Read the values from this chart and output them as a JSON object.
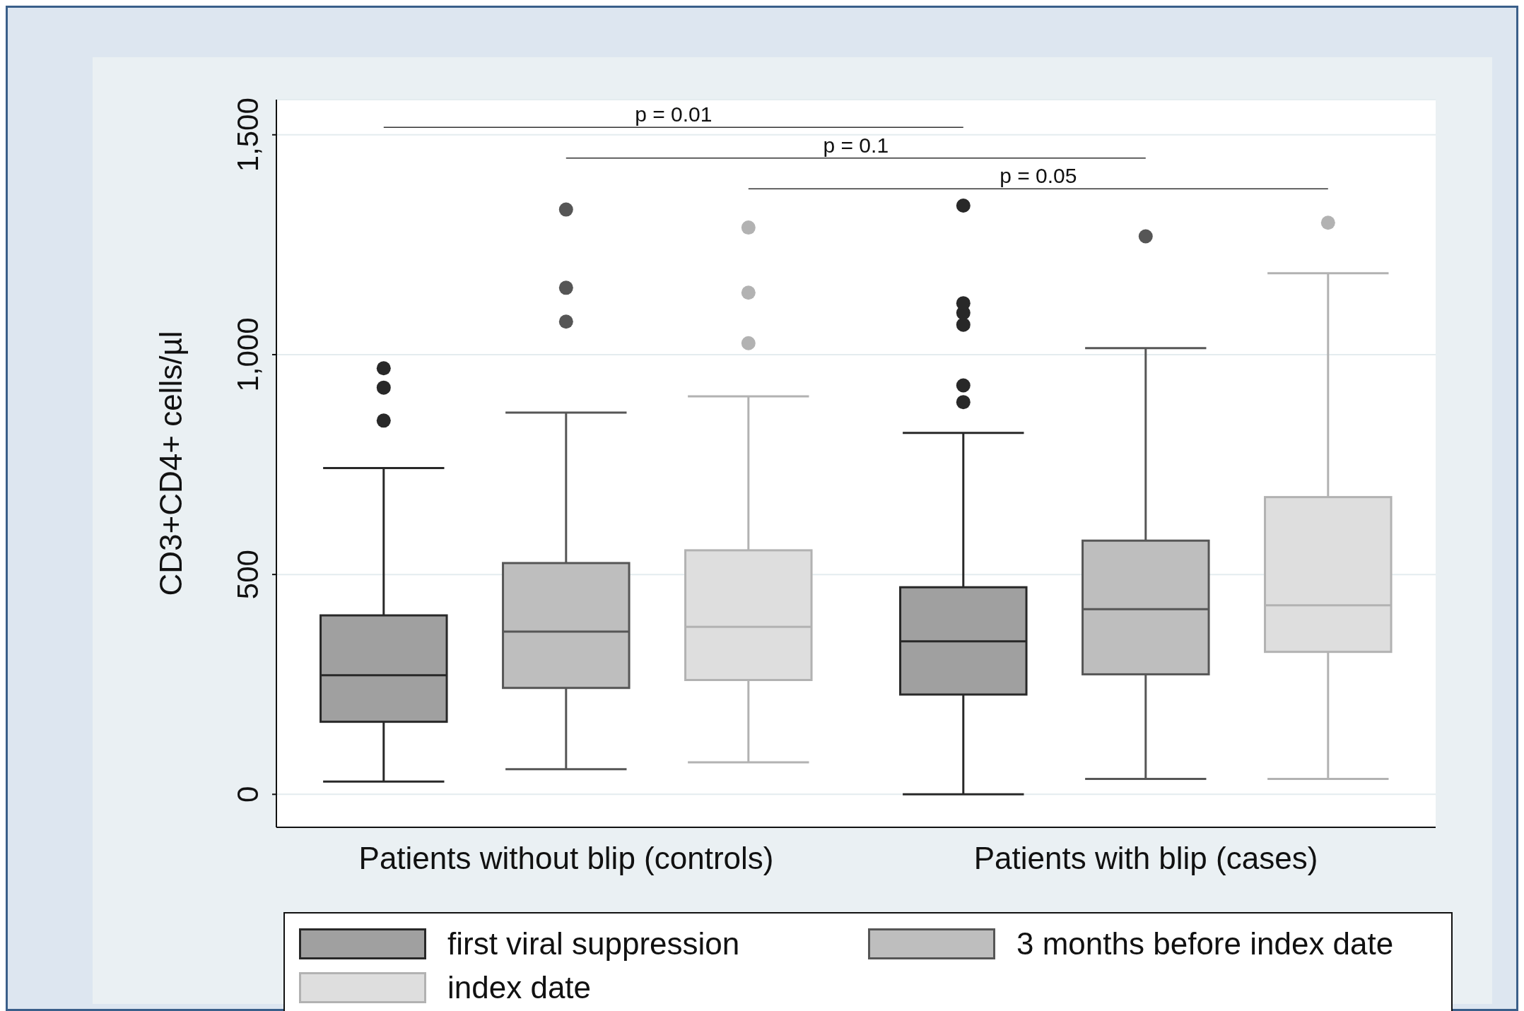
{
  "chart_data": {
    "type": "box",
    "ylabel": "CD3+CD4+ cells/µl",
    "categories": [
      "Patients without blip (controls)",
      "Patients with blip (cases)"
    ],
    "ylim": [
      -75,
      1580
    ],
    "yticks": [
      {
        "value": 0,
        "label": "0"
      },
      {
        "value": 500,
        "label": "500"
      },
      {
        "value": 1000,
        "label": "1,000"
      },
      {
        "value": 1500,
        "label": "1,500"
      }
    ],
    "grid": "y",
    "legend": "bottom",
    "annotations": [
      "p = 0.01",
      "p = 0.1",
      "p = 0.05"
    ],
    "series": [
      {
        "name": "first viral suppression",
        "color": "#a0a0a0",
        "boxes": [
          {
            "low": 29,
            "q1": 165,
            "median": 271,
            "q3": 407,
            "high": 742,
            "outliers": [
              850,
              925,
              969
            ]
          },
          {
            "low": 0,
            "q1": 227,
            "median": 348,
            "q3": 471,
            "high": 822,
            "outliers": [
              892,
              930,
              1068,
              1095,
              1117,
              1339
            ]
          }
        ]
      },
      {
        "name": "3 months before index date",
        "color": "#bebebe",
        "boxes": [
          {
            "low": 57,
            "q1": 242,
            "median": 370,
            "q3": 526,
            "high": 868,
            "outliers": [
              1075,
              1152,
              1330
            ]
          },
          {
            "low": 35,
            "q1": 273,
            "median": 421,
            "q3": 577,
            "high": 1015,
            "outliers": [
              1269
            ]
          }
        ]
      },
      {
        "name": "index date",
        "color": "#dedede",
        "boxes": [
          {
            "low": 73,
            "q1": 260,
            "median": 381,
            "q3": 555,
            "high": 905,
            "outliers": [
              1026,
              1141,
              1289
            ]
          },
          {
            "low": 35,
            "q1": 324,
            "median": 430,
            "q3": 676,
            "high": 1185,
            "outliers": [
              1300
            ]
          }
        ]
      }
    ]
  }
}
